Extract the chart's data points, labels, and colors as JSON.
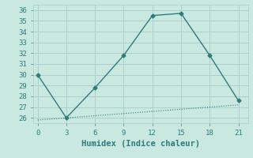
{
  "line1_x": [
    0,
    3,
    6,
    9,
    12,
    15,
    18,
    21
  ],
  "line1_y": [
    30,
    26,
    28.8,
    31.8,
    35.5,
    35.7,
    31.8,
    27.6
  ],
  "line2_x": [
    0,
    3,
    6,
    9,
    12,
    15,
    18,
    21
  ],
  "line2_y": [
    25.8,
    26.0,
    26.2,
    26.4,
    26.6,
    26.8,
    27.0,
    27.2
  ],
  "color": "#2d7d7d",
  "xlabel": "Humidex (Indice chaleur)",
  "ylim": [
    25.5,
    36.5
  ],
  "xlim": [
    -0.5,
    22
  ],
  "yticks": [
    26,
    27,
    28,
    29,
    30,
    31,
    32,
    33,
    34,
    35,
    36
  ],
  "xticks": [
    0,
    3,
    6,
    9,
    12,
    15,
    18,
    21
  ],
  "background_color": "#c8e8e0",
  "grid_color": "#aecece",
  "font_color": "#2d7d7d",
  "xlabel_fontsize": 7.5,
  "tick_fontsize": 6.5
}
